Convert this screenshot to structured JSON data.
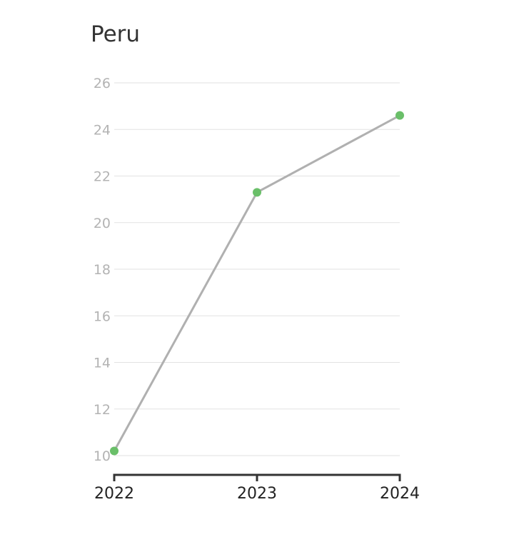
{
  "chart_data": {
    "type": "line",
    "title": "Peru",
    "xlabel": "",
    "ylabel": "",
    "x": [
      "2022",
      "2023",
      "2024"
    ],
    "series": [
      {
        "values": [
          10.2,
          21.3,
          24.6
        ]
      }
    ],
    "ylim": [
      10,
      26
    ],
    "yticks": [
      "10",
      "12",
      "14",
      "16",
      "18",
      "20",
      "22",
      "24",
      "26"
    ],
    "grid": true,
    "legend": "none",
    "colors": {
      "line": "#b0b0b0",
      "marker": "#6abf69",
      "grid": "#e2e2e2",
      "axis": "#333333"
    }
  }
}
